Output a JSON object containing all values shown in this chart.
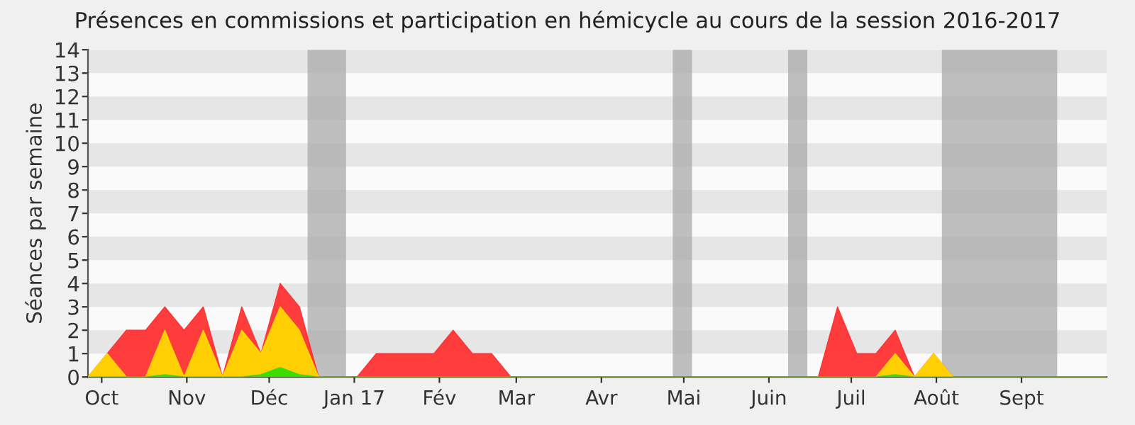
{
  "chart_data": {
    "type": "area",
    "title": "Présences en commissions et participation en hémicycle au cours de la session 2016-2017",
    "ylabel": "Séances par semaine",
    "x": [
      "2016-09-26",
      "2016-10-03",
      "2016-10-10",
      "2016-10-17",
      "2016-10-24",
      "2016-10-31",
      "2016-11-07",
      "2016-11-14",
      "2016-11-21",
      "2016-11-28",
      "2016-12-05",
      "2016-12-12",
      "2016-12-19",
      "2016-12-26",
      "2017-01-02",
      "2017-01-09",
      "2017-01-16",
      "2017-01-23",
      "2017-01-30",
      "2017-02-06",
      "2017-02-13",
      "2017-02-20",
      "2017-02-27",
      "2017-03-06",
      "2017-03-13",
      "2017-03-20",
      "2017-03-27",
      "2017-04-03",
      "2017-04-10",
      "2017-04-17",
      "2017-04-24",
      "2017-05-01",
      "2017-05-08",
      "2017-05-15",
      "2017-05-22",
      "2017-05-29",
      "2017-06-05",
      "2017-06-12",
      "2017-06-19",
      "2017-06-26",
      "2017-07-03",
      "2017-07-10",
      "2017-07-17",
      "2017-07-24",
      "2017-07-31",
      "2017-08-07",
      "2017-08-14",
      "2017-08-21",
      "2017-08-28",
      "2017-09-04",
      "2017-09-11",
      "2017-09-18",
      "2017-09-25",
      "2017-10-02"
    ],
    "xlim": [
      "2016-09-26",
      "2017-10-02"
    ],
    "xticks": [
      {
        "value": "2016-10-01",
        "label": "Oct"
      },
      {
        "value": "2016-11-01",
        "label": "Nov"
      },
      {
        "value": "2016-12-01",
        "label": "Déc"
      },
      {
        "value": "2017-01-01",
        "label": "Jan 17"
      },
      {
        "value": "2017-02-01",
        "label": "Fév"
      },
      {
        "value": "2017-03-01",
        "label": "Mar"
      },
      {
        "value": "2017-04-01",
        "label": "Avr"
      },
      {
        "value": "2017-05-01",
        "label": "Mai"
      },
      {
        "value": "2017-06-01",
        "label": "Juin"
      },
      {
        "value": "2017-07-01",
        "label": "Juil"
      },
      {
        "value": "2017-08-01",
        "label": "Août"
      },
      {
        "value": "2017-09-01",
        "label": "Sept"
      }
    ],
    "series": [
      {
        "color": "#ff3333",
        "values": [
          0,
          1,
          2,
          2,
          3,
          2,
          3,
          0,
          3,
          1,
          4,
          3,
          0,
          0,
          0,
          1,
          1,
          1,
          1,
          2,
          1,
          1,
          0,
          0,
          0,
          0,
          0,
          0,
          0,
          0,
          0,
          0,
          0,
          0,
          0,
          0,
          0,
          0,
          0,
          3,
          1,
          1,
          2,
          0,
          1,
          0,
          0,
          0,
          0,
          0,
          0,
          0,
          0,
          0
        ]
      },
      {
        "color": "#ffd700",
        "values": [
          0,
          1,
          0,
          0,
          2,
          0,
          2,
          0,
          2,
          1,
          3,
          2,
          0,
          0,
          0,
          0,
          0,
          0,
          0,
          0,
          0,
          0,
          0,
          0,
          0,
          0,
          0,
          0,
          0,
          0,
          0,
          0,
          0,
          0,
          0,
          0,
          0,
          0,
          0,
          0,
          0,
          0,
          1,
          0,
          1,
          0,
          0,
          0,
          0,
          0,
          0,
          0,
          0,
          0
        ]
      },
      {
        "color": "#33dd00",
        "values": [
          0,
          0,
          0,
          0,
          0.1,
          0,
          0,
          0,
          0,
          0.1,
          0.4,
          0.1,
          0,
          0,
          0,
          0,
          0,
          0,
          0,
          0,
          0,
          0,
          0,
          0,
          0,
          0,
          0,
          0,
          0,
          0,
          0,
          0,
          0,
          0,
          0,
          0,
          0,
          0,
          0,
          0,
          0,
          0,
          0.1,
          0,
          0,
          0,
          0,
          0,
          0,
          0,
          0,
          0,
          0,
          0
        ]
      }
    ],
    "ylim": [
      0,
      14
    ],
    "yticks": [
      0,
      1,
      2,
      3,
      4,
      5,
      6,
      7,
      8,
      9,
      10,
      11,
      12,
      13,
      14
    ],
    "bands": [
      {
        "axis": "y",
        "from": 1,
        "to": 2,
        "color": "#e6e6e6"
      },
      {
        "axis": "y",
        "from": 3,
        "to": 4,
        "color": "#e6e6e6"
      },
      {
        "axis": "y",
        "from": 5,
        "to": 6,
        "color": "#e6e6e6"
      },
      {
        "axis": "y",
        "from": 7,
        "to": 8,
        "color": "#e6e6e6"
      },
      {
        "axis": "y",
        "from": 9,
        "to": 10,
        "color": "#e6e6e6"
      },
      {
        "axis": "y",
        "from": 11,
        "to": 12,
        "color": "#e6e6e6"
      },
      {
        "axis": "y",
        "from": 13,
        "to": 14,
        "color": "#e6e6e6"
      },
      {
        "axis": "x",
        "from": "2016-12-15",
        "to": "2016-12-29",
        "color": "#aaaaaa"
      },
      {
        "axis": "x",
        "from": "2017-04-27",
        "to": "2017-05-04",
        "color": "#aaaaaa"
      },
      {
        "axis": "x",
        "from": "2017-06-08",
        "to": "2017-06-15",
        "color": "#aaaaaa"
      },
      {
        "axis": "x",
        "from": "2017-08-03",
        "to": "2017-09-14",
        "color": "#aaaaaa"
      }
    ]
  }
}
